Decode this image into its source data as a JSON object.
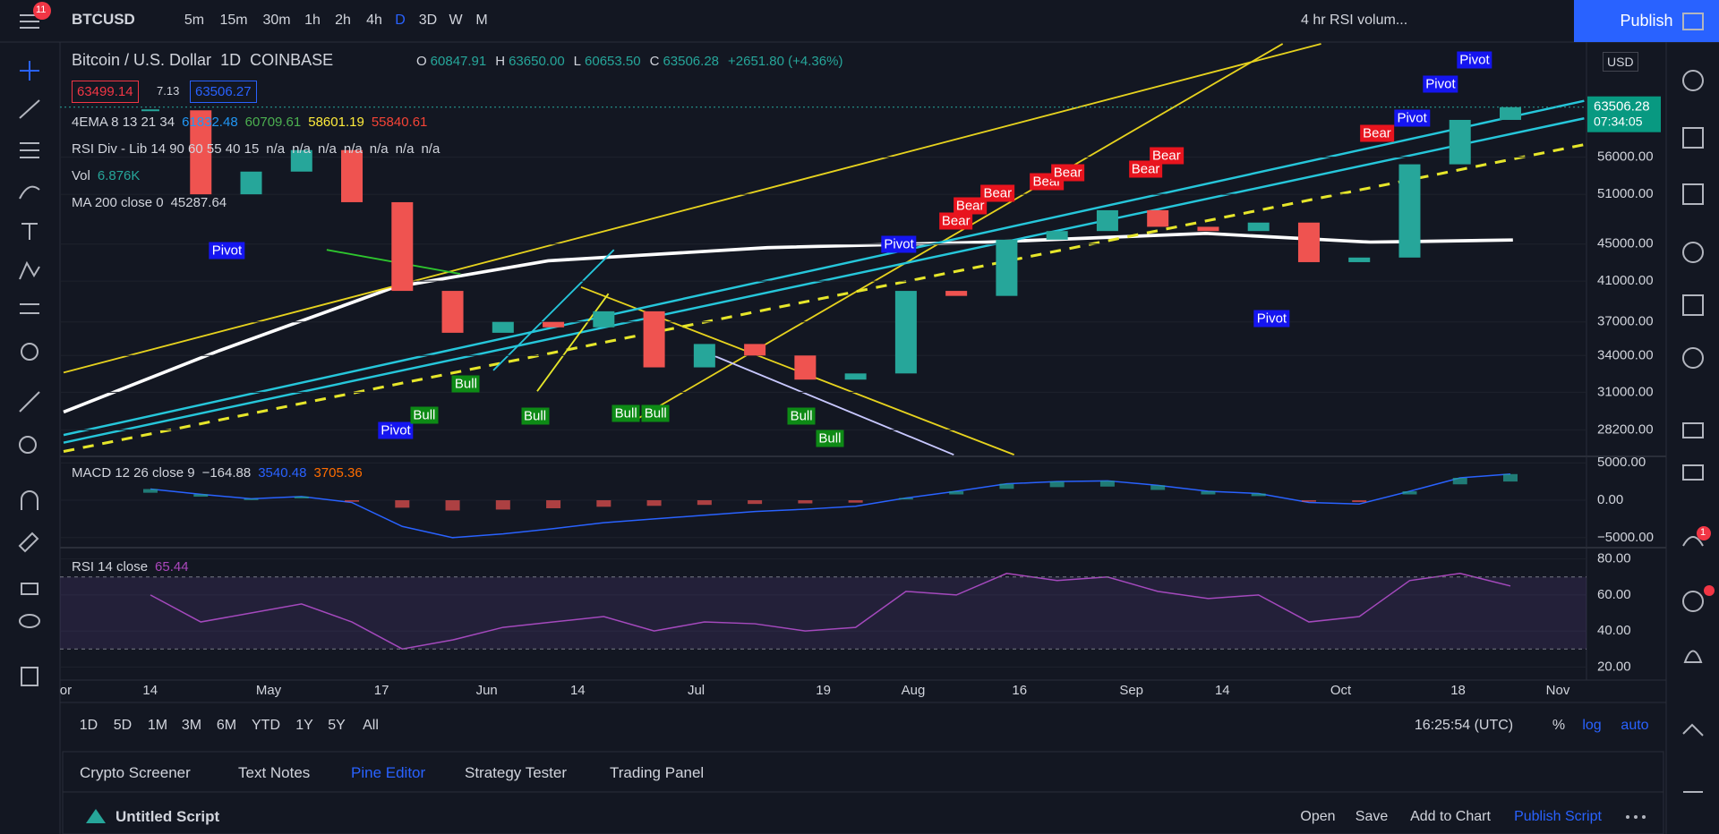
{
  "toolbar": {
    "symbol": "BTCUSD",
    "alert_count": "11",
    "intervals": [
      "5m",
      "15m",
      "30m",
      "1h",
      "2h",
      "4h",
      "D",
      "3D",
      "W",
      "M"
    ],
    "layout_name": "4 hr RSI volum...",
    "publish": "Publish"
  },
  "legend": {
    "instrument": "Bitcoin / U.S. Dollar",
    "interval": "1D",
    "exchange": "COINBASE",
    "ohlc": [
      {
        "label": "O",
        "value": "60847.91"
      },
      {
        "label": "H",
        "value": "63650.00"
      },
      {
        "label": "L",
        "value": "60653.50"
      },
      {
        "label": "C",
        "value": "63506.28"
      }
    ],
    "change": "+2651.80 (+4.36%)",
    "bid": "63499.14",
    "spread": "7.13",
    "ask": "63506.27"
  },
  "indicators": [
    {
      "name": "4EMA 8 13 21 34",
      "values": [
        "61832.48",
        "60709.61",
        "58601.19",
        "55840.61"
      ]
    },
    {
      "name": "RSI Div - Lib 14 90 60 55 40 15",
      "values": [
        "n/a",
        "n/a",
        "n/a",
        "n/a",
        "n/a",
        "n/a",
        "n/a"
      ]
    },
    {
      "name": "Vol",
      "values": [
        "6.876K"
      ]
    },
    {
      "name": "MA 200 close 0",
      "values": [
        "45287.64"
      ]
    }
  ],
  "price_chart": {
    "log_scale": true,
    "ylim": [
      26500,
      74800
    ],
    "yticks": [
      {
        "value": 56000,
        "label": "56000.00"
      },
      {
        "value": 51000,
        "label": "51000.00"
      },
      {
        "value": 45000,
        "label": "45000.00"
      },
      {
        "value": 41000,
        "label": "41000.00"
      },
      {
        "value": 37000,
        "label": "37000.00"
      },
      {
        "value": 34000,
        "label": "34000.00"
      },
      {
        "value": 31000,
        "label": "31000.00"
      },
      {
        "value": 28200,
        "label": "28200.00"
      }
    ],
    "last_price": {
      "value": 63506.28,
      "label": "63506.28"
    },
    "countdown": "07:34:05",
    "currency": "USD",
    "closes": [
      63000,
      51000,
      54000,
      57000,
      50000,
      40000,
      36000,
      37000,
      36500,
      38000,
      33000,
      35000,
      34000,
      32000,
      32500,
      40000,
      39500,
      45500,
      46500,
      49000,
      47000,
      46500,
      47500,
      43000,
      43500,
      55000,
      61500,
      63500
    ],
    "pivot_labels": [
      "Pivot",
      "Pivot",
      "Pivot",
      "Pivot",
      "Pivot",
      "Pivot",
      "Pivot"
    ],
    "bull_labels": [
      "Bull",
      "Bull",
      "Bull",
      "Bull",
      "Bull",
      "Bull",
      "Bull"
    ],
    "bear_labels": [
      "Bear",
      "Bear",
      "Bear",
      "Bear",
      "Bear",
      "Bear",
      "Bear",
      "Bear"
    ]
  },
  "macd": {
    "name": "MACD 12 26 close 9",
    "values": [
      "−164.88",
      "3540.48",
      "3705.36"
    ],
    "ylim": [
      -6100,
      5630
    ],
    "yticks": [
      {
        "value": 5000,
        "label": "5000.00"
      },
      {
        "value": 0,
        "label": "0.00"
      },
      {
        "value": -5000,
        "label": "−5000.00"
      }
    ],
    "line": [
      1500,
      800,
      200,
      500,
      -300,
      -3500,
      -5000,
      -4500,
      -3800,
      -3000,
      -2500,
      -2000,
      -1500,
      -1200,
      -800,
      300,
      1200,
      2200,
      2500,
      2600,
      2000,
      1200,
      900,
      -300,
      -500,
      1200,
      3000,
      3500
    ]
  },
  "rsi": {
    "name": "RSI 14 close",
    "value": "65.44",
    "ylim": [
      13.7,
      85.3
    ],
    "yticks": [
      {
        "value": 80,
        "label": "80.00"
      },
      {
        "value": 60,
        "label": "60.00"
      },
      {
        "value": 40,
        "label": "40.00"
      },
      {
        "value": 20,
        "label": "20.00"
      }
    ],
    "bands": [
      30,
      70
    ],
    "line": [
      60,
      45,
      50,
      55,
      45,
      30,
      35,
      42,
      45,
      48,
      40,
      45,
      44,
      40,
      42,
      62,
      60,
      72,
      68,
      70,
      62,
      58,
      60,
      45,
      48,
      68,
      72,
      65
    ]
  },
  "time_axis": [
    "or",
    "14",
    "May",
    "17",
    "Jun",
    "14",
    "Jul",
    "19",
    "Aug",
    "16",
    "Sep",
    "14",
    "Oct",
    "18",
    "Nov"
  ],
  "range_bar": {
    "ranges": [
      "1D",
      "5D",
      "1M",
      "3M",
      "6M",
      "YTD",
      "1Y",
      "5Y",
      "All"
    ],
    "clock": "16:25:54 (UTC)",
    "percent": "%",
    "log": "log",
    "auto": "auto"
  },
  "bottom_panel": {
    "tabs": [
      "Crypto Screener",
      "Text Notes",
      "Pine Editor",
      "Strategy Tester",
      "Trading Panel"
    ],
    "script_name": "Untitled Script",
    "actions": [
      "Open",
      "Save",
      "Add to Chart",
      "Publish Script"
    ]
  },
  "sidebar": {
    "alert_count": "1"
  }
}
